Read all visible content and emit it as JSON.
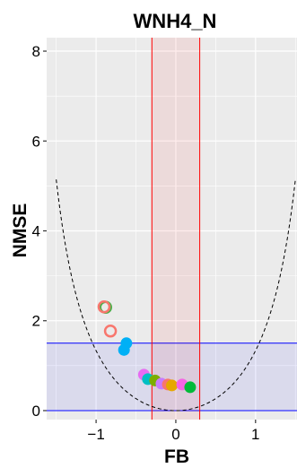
{
  "chart_data": {
    "type": "scatter",
    "title": "WNH4_N",
    "xlabel": "FB",
    "ylabel": "NMSE",
    "xlim": [
      -1.62,
      1.52
    ],
    "ylim": [
      -0.2,
      8.3
    ],
    "x_ticks": [
      -1,
      0,
      1
    ],
    "y_ticks": [
      0,
      2,
      4,
      6,
      8
    ],
    "grid": true,
    "legend": "none",
    "bands": {
      "fb_range": [
        -0.3,
        0.3
      ],
      "fb_color": "#ff0000",
      "nmse_range": [
        0,
        1.5
      ],
      "nmse_color": "#0000ff"
    },
    "reference_curve": {
      "style": "dashed",
      "description": "minimum NMSE for given FB: NMSE = 4*FB^2/(4-FB^2)",
      "x_range": [
        -1.5,
        1.5
      ]
    },
    "points": [
      {
        "x": -0.88,
        "y": 2.3,
        "color": "#4daf4a",
        "hollow": true
      },
      {
        "x": -0.9,
        "y": 2.31,
        "color": "#f8766d",
        "hollow": true
      },
      {
        "x": -0.82,
        "y": 1.77,
        "color": "#f8766d",
        "hollow": true
      },
      {
        "x": -0.62,
        "y": 1.5,
        "color": "#00b0f6",
        "hollow": false
      },
      {
        "x": -0.65,
        "y": 1.35,
        "color": "#00b0f6",
        "hollow": false
      },
      {
        "x": -0.4,
        "y": 0.8,
        "color": "#e76bf3",
        "hollow": false
      },
      {
        "x": -0.35,
        "y": 0.7,
        "color": "#00bfc4",
        "hollow": false
      },
      {
        "x": -0.26,
        "y": 0.67,
        "color": "#7cae00",
        "hollow": false
      },
      {
        "x": -0.18,
        "y": 0.6,
        "color": "#c77cff",
        "hollow": false
      },
      {
        "x": -0.1,
        "y": 0.58,
        "color": "#f8766d",
        "hollow": false
      },
      {
        "x": -0.05,
        "y": 0.56,
        "color": "#e6a700",
        "hollow": false
      },
      {
        "x": 0.08,
        "y": 0.58,
        "color": "#f564e3",
        "hollow": false
      },
      {
        "x": 0.18,
        "y": 0.52,
        "color": "#00ba38",
        "hollow": false
      }
    ]
  }
}
